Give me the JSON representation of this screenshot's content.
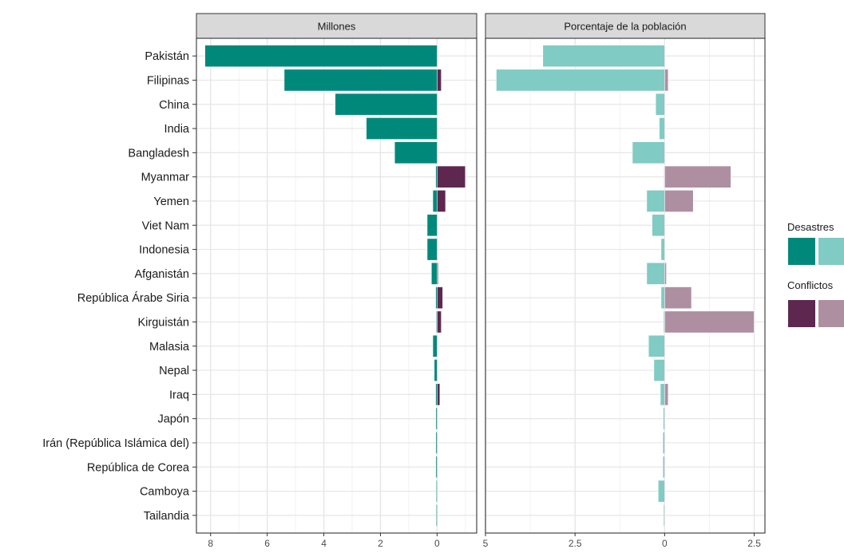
{
  "chart_data": {
    "type": "bar",
    "orientation": "horizontal",
    "grid": true,
    "legend_position": "right",
    "categories": [
      "Pakistán",
      "Filipinas",
      "China",
      "India",
      "Bangladesh",
      "Myanmar",
      "Yemen",
      "Viet Nam",
      "Indonesia",
      "Afganistán",
      "República Árabe Siria",
      "Kirguistán",
      "Malasia",
      "Nepal",
      "Iraq",
      "Japón",
      "Irán (República Islámica del)",
      "República de Corea",
      "Camboya",
      "Tailandia"
    ],
    "panels": [
      {
        "title": "Millones",
        "xlim": [
          8.5,
          -1.4
        ],
        "x_ticks": [
          8,
          6,
          4,
          2,
          0
        ],
        "x_tick_labels": [
          "8",
          "6",
          "4",
          "2",
          "0"
        ],
        "series": [
          {
            "name": "Desastres",
            "color": "#00897b",
            "direction": "positive-left",
            "values": [
              8.2,
              5.4,
              3.6,
              2.5,
              1.5,
              0.05,
              0.15,
              0.35,
              0.35,
              0.2,
              0.05,
              0.03,
              0.15,
              0.1,
              0.05,
              0.04,
              0.04,
              0.04,
              0.03,
              0.03
            ]
          },
          {
            "name": "Conflictos",
            "color": "#5e2750",
            "direction": "negative-right",
            "values": [
              0.0,
              0.15,
              0.0,
              0.0,
              0.0,
              1.0,
              0.3,
              0.0,
              0.0,
              0.04,
              0.2,
              0.15,
              0.0,
              0.0,
              0.1,
              0.0,
              0.0,
              0.0,
              0.0,
              0.0
            ]
          }
        ]
      },
      {
        "title": "Porcentaje de la población",
        "xlim": [
          5,
          -2.8
        ],
        "x_ticks": [
          5,
          2.5,
          0,
          -2.5
        ],
        "x_tick_labels": [
          "5",
          "2.5",
          "0",
          "2.5"
        ],
        "series": [
          {
            "name": "Desastres",
            "color": "#80cbc4",
            "direction": "positive-left",
            "values": [
              3.4,
              4.7,
              0.25,
              0.15,
              0.9,
              0.02,
              0.5,
              0.35,
              0.1,
              0.5,
              0.1,
              0.03,
              0.45,
              0.3,
              0.12,
              0.04,
              0.05,
              0.05,
              0.18,
              0.03
            ]
          },
          {
            "name": "Conflictos",
            "color": "#ae8fa2",
            "direction": "negative-right",
            "values": [
              0.0,
              0.1,
              0.0,
              0.0,
              0.0,
              1.85,
              0.8,
              0.0,
              0.0,
              0.05,
              0.75,
              2.5,
              0.0,
              0.0,
              0.1,
              0.0,
              0.0,
              0.0,
              0.0,
              0.0
            ]
          }
        ]
      }
    ],
    "legend": [
      {
        "title": "Desastres",
        "swatches": [
          "#00897b",
          "#80cbc4"
        ]
      },
      {
        "title": "Conflictos",
        "swatches": [
          "#5e2750",
          "#ae8fa2"
        ]
      }
    ]
  }
}
